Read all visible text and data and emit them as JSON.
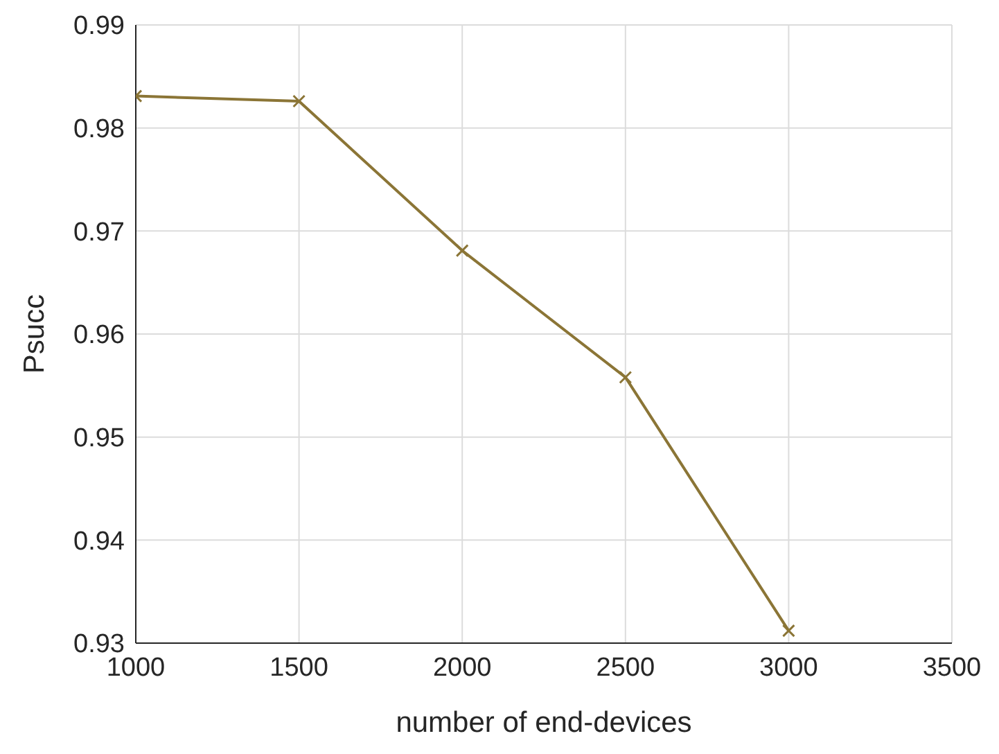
{
  "chart_data": {
    "type": "line",
    "xlabel": "number of end-devices",
    "ylabel": "Psucc",
    "x": [
      1000,
      1500,
      2000,
      2500,
      3000
    ],
    "series": [
      {
        "color": "#8b7536",
        "values": [
          0.9831,
          0.9826,
          0.9681,
          0.9558,
          0.9312
        ]
      }
    ],
    "xlim": [
      1000,
      3500
    ],
    "xticks": [
      1000,
      1500,
      2000,
      2500,
      3000,
      3500
    ],
    "ylim": [
      0.93,
      0.99
    ],
    "yticks": [
      0.93,
      0.94,
      0.95,
      0.96,
      0.97,
      0.98,
      0.99
    ],
    "grid": true,
    "marker": "cross",
    "line_style": "solid"
  }
}
